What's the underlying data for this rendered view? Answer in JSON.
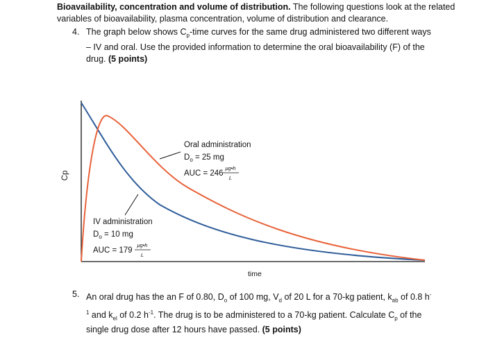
{
  "intro": {
    "title": "Bioavailability, concentration and volume of distribution.",
    "text": " The following questions look at the related variables of bioavailability, plasma concentration, volume of distribution and clearance."
  },
  "q4": {
    "number": "4.",
    "text": "The graph below shows C",
    "sub": "p",
    "text2": "-time curves for the same drug administered two different ways – IV and oral. Use the provided information to determine the oral bioavailability (F) of the drug. ",
    "points": "(5 points)"
  },
  "q5": {
    "number": "5.",
    "t1": "An oral drug has the an F of 0.80, D",
    "s1": "o",
    "t2": " of 100 mg, V",
    "s2": "d",
    "t3": " of 20 L for a 70-kg patient, k",
    "s3": "ab",
    "t4": " of 0.8 h",
    "sup1": "-1",
    "t5": " and k",
    "s4": "el",
    "t6": " of 0.2 h",
    "sup2": "-1",
    "t7": ". The drug is to be administered to a 70-kg patient. Calculate C",
    "s5": "p",
    "t8": " of the single drug dose after 12 hours have passed. ",
    "points": "(5 points)"
  },
  "chart_data": {
    "type": "line",
    "xlabel": "time",
    "ylabel": "Cp",
    "series": [
      {
        "name": "IV administration",
        "color": "#2e5c99",
        "dose": "D₀ = 10 mg",
        "auc": "AUC = 179"
      },
      {
        "name": "Oral administration",
        "color": "#e8623a",
        "dose": "D₀ = 25 mg",
        "auc": "AUC = 246"
      }
    ],
    "auc_unit_num": "μg•h",
    "auc_unit_den": "L",
    "dose_prefix": "D",
    "dose_sub": "o",
    "iv_dose_rest": " = 10 mg",
    "oral_dose_rest": " = 25 mg",
    "iv_auc_text": "AUC = 179",
    "oral_auc_text": "AUC = 246"
  }
}
